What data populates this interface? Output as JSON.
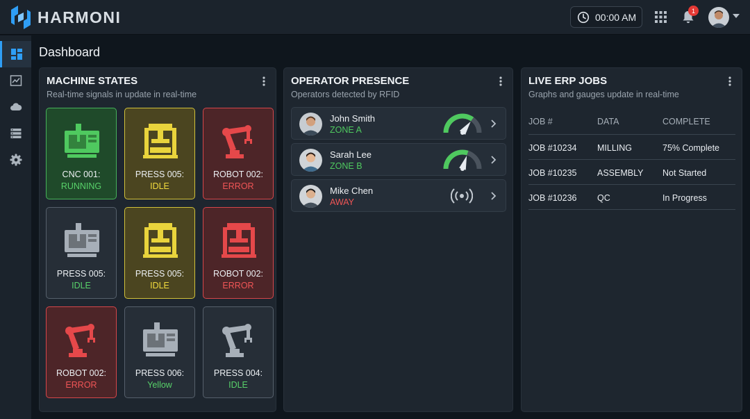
{
  "app": {
    "name": "HARMONI",
    "brand_color": "#2f9ef5"
  },
  "header": {
    "clock": "00:00 AM",
    "notifications_count": "1",
    "icons": [
      "clock-icon",
      "apps-grid-icon",
      "bell-icon",
      "user-avatar"
    ]
  },
  "nav": {
    "items": [
      {
        "icon": "dashboard-icon",
        "active": true
      },
      {
        "icon": "chart-icon",
        "active": false
      },
      {
        "icon": "cloud-icon",
        "active": false
      },
      {
        "icon": "server-icon",
        "active": false
      },
      {
        "icon": "gear-icon",
        "active": false
      }
    ]
  },
  "page": {
    "title": "Dashboard"
  },
  "machines": {
    "title": "MACHINE STATES",
    "subtitle": "Real-time signals in update in real-time",
    "tiles": [
      {
        "name": "CNC 001:",
        "state": "RUNNING",
        "color": "green",
        "icon": "cnc-machine-icon"
      },
      {
        "name": "PRESS 005:",
        "state": "IDLE",
        "color": "yellow",
        "icon": "press-machine-icon"
      },
      {
        "name": "ROBOT 002:",
        "state": "ERROR",
        "color": "red",
        "icon": "robot-arm-icon"
      },
      {
        "name": "PRESS 005:",
        "state": "IDLE",
        "color": "gray",
        "icon": "cnc-machine-icon"
      },
      {
        "name": "PRESS 005:",
        "state": "IDLE",
        "color": "yellow",
        "icon": "press-machine-icon"
      },
      {
        "name": "ROBOT 002:",
        "state": "ERROR",
        "color": "red",
        "icon": "press-machine-icon"
      },
      {
        "name": "ROBOT 002:",
        "state": "ERROR",
        "color": "red",
        "icon": "robot-arm-icon"
      },
      {
        "name": "PRESS 006:",
        "state": "Yellow",
        "color": "gray",
        "icon": "cnc-machine-icon"
      },
      {
        "name": "PRESS 004:",
        "state": "IDLE",
        "color": "gray",
        "icon": "robot-arm-icon"
      }
    ]
  },
  "operators": {
    "title": "OPERATOR PRESENCE",
    "subtitle": "Operators detected by RFID",
    "rows": [
      {
        "name": "John Smith",
        "zone": "ZONE A",
        "indicator": "gauge",
        "gauge_level": 0.7,
        "zone_color": "#4fc95f"
      },
      {
        "name": "Sarah Lee",
        "zone": "ZONE B",
        "indicator": "gauge",
        "gauge_level": 0.6,
        "zone_color": "#4fc95f"
      },
      {
        "name": "Mike Chen",
        "zone": "AWAY",
        "indicator": "rfid-signal-icon",
        "zone_color": "#f05556"
      }
    ]
  },
  "jobs": {
    "title": "LIVE ERP JOBS",
    "subtitle": "Graphs and gauges update in real-time",
    "columns": [
      "JOB #",
      "DATA",
      "COMPLETE"
    ],
    "rows": [
      [
        "JOB #10234",
        "MILLING",
        "75% Complete"
      ],
      [
        "JOB #10235",
        "ASSEMBLY",
        "Not Started"
      ],
      [
        "JOB #10236",
        "QC",
        "In Progress"
      ]
    ]
  }
}
